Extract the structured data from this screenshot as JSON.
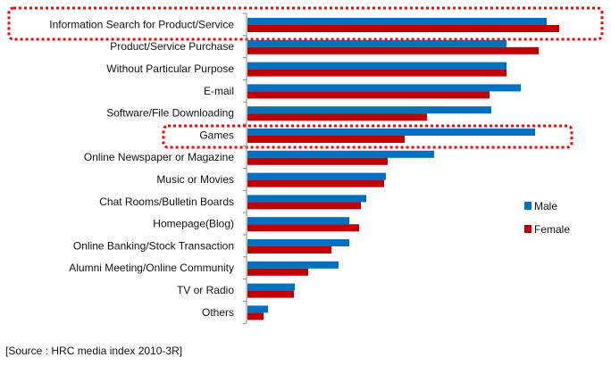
{
  "chart_data": {
    "type": "bar",
    "orientation": "horizontal",
    "title": "",
    "xlabel": "",
    "ylabel": "",
    "categories": [
      "Information Search for Product/Service",
      "Product/Service Purchase",
      "Without Particular Purpose",
      "E-mail",
      "Software/File Downloading",
      "Games",
      "Online Newspaper or Magazine",
      "Music or Movies",
      "Chat Rooms/Bulletin  Boards",
      "Homepage(Blog)",
      "Online Banking/Stock Transaction",
      "Alumni Meeting/Online Community",
      "TV or Radio",
      "Others"
    ],
    "series": [
      {
        "name": "Male",
        "color": "#0070c0",
        "values": [
          335,
          290,
          290,
          306,
          273,
          322,
          209,
          155,
          133,
          114,
          114,
          102,
          53,
          23
        ]
      },
      {
        "name": "Female",
        "color": "#c00000",
        "values": [
          349,
          326,
          290,
          271,
          201,
          176,
          157,
          153,
          127,
          125,
          94,
          68,
          52,
          18
        ]
      }
    ],
    "xlim": [
      0,
      400
    ],
    "value_note": "relative bar lengths (no value axis shown)",
    "grid": false,
    "legend_position": "right",
    "highlighted": [
      "Information Search for Product/Service",
      "Games"
    ],
    "highlight_color": "#ff0000"
  },
  "source": "[Source :   HRC media index 2010-3R]"
}
